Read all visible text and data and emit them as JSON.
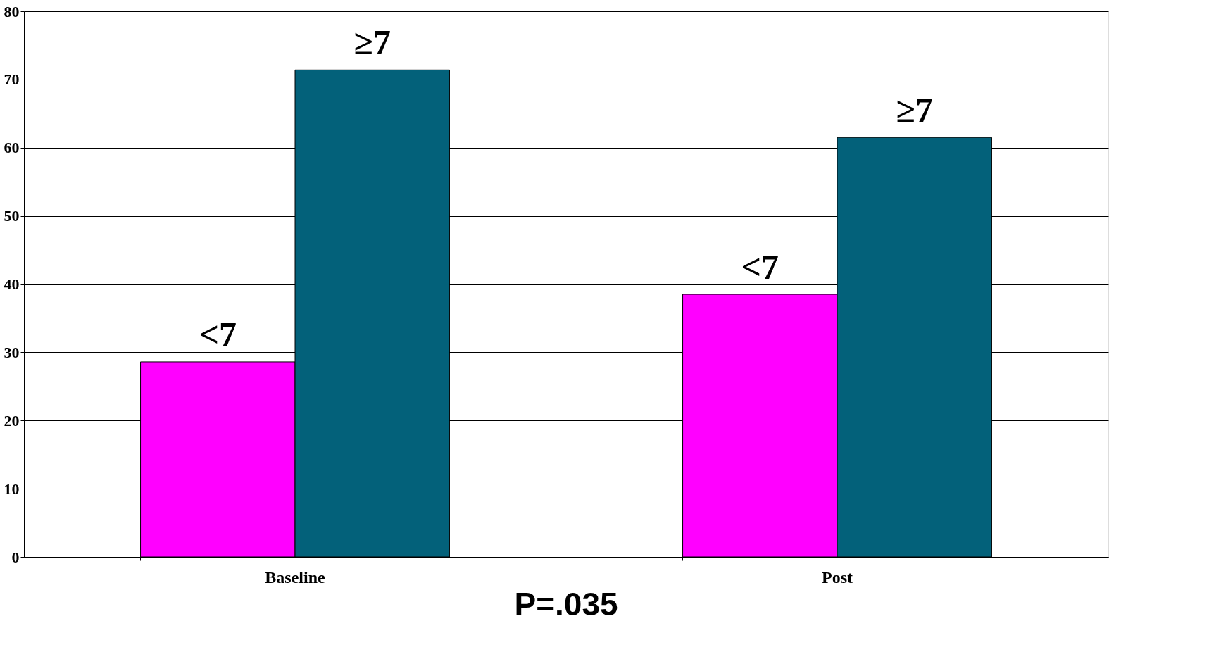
{
  "chart_data": {
    "type": "bar",
    "categories": [
      "Baseline",
      "Post"
    ],
    "series": [
      {
        "name": "<7",
        "color": "#ff00ff",
        "values": [
          28.6,
          38.5
        ]
      },
      {
        "name": "≥7",
        "color": "#03617a",
        "values": [
          71.4,
          61.5
        ]
      }
    ],
    "ylim": [
      0,
      80
    ],
    "yticks": [
      0,
      10,
      20,
      30,
      40,
      50,
      60,
      70,
      80
    ],
    "grid": "y",
    "legend": false,
    "annotations": [
      "P=.035"
    ]
  }
}
